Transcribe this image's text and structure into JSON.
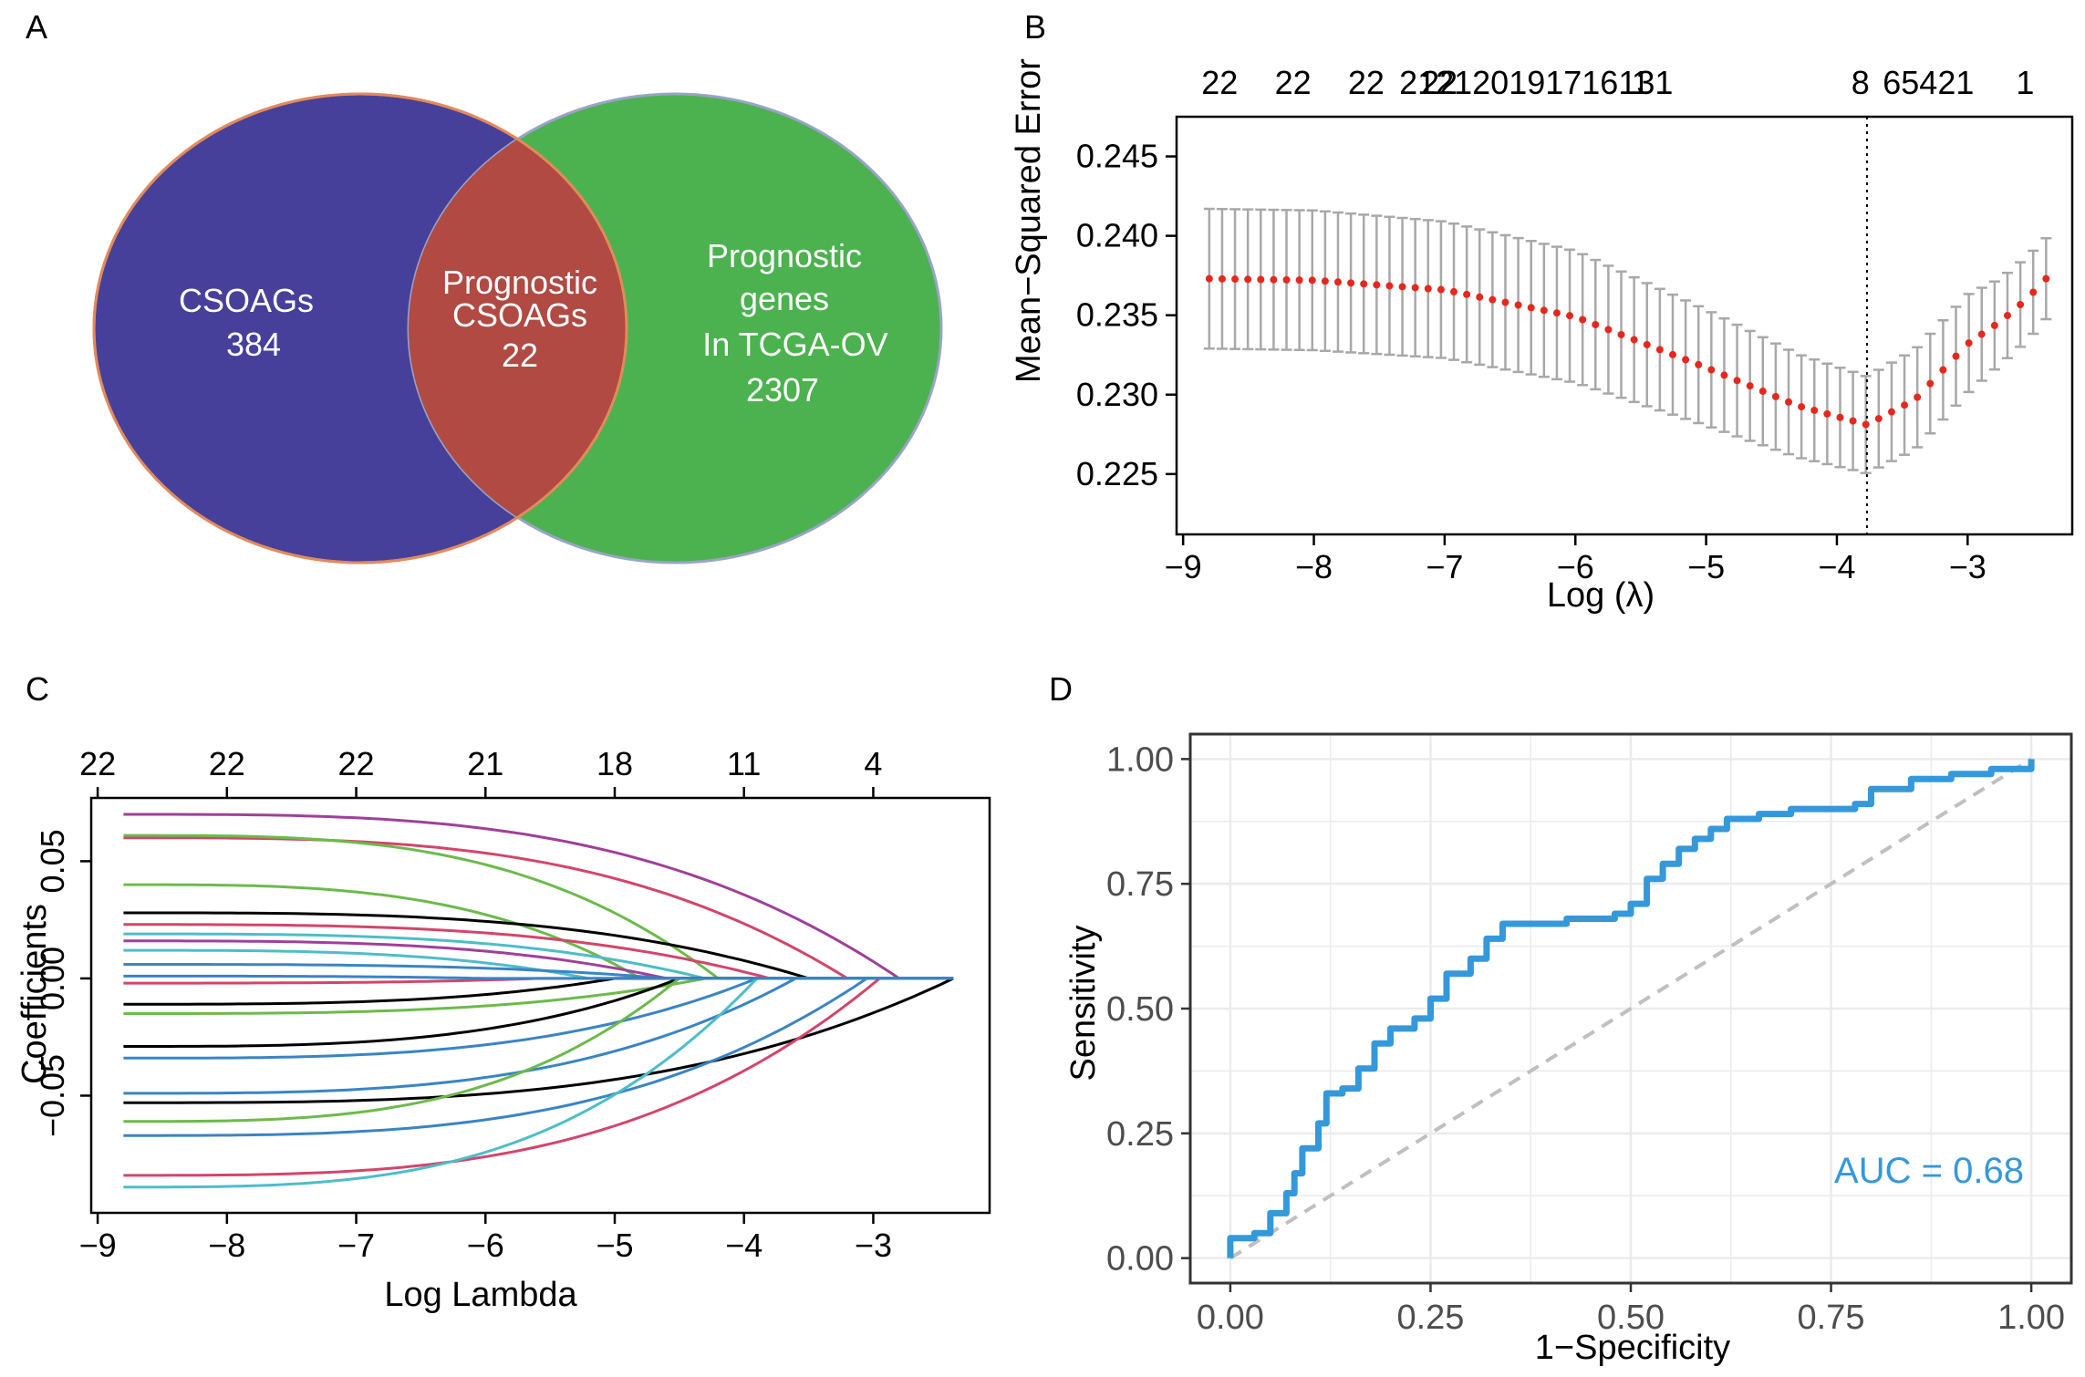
{
  "panels": {
    "a": "A",
    "b": "B",
    "c": "C",
    "d": "D"
  },
  "venn": {
    "left": {
      "line1": "CSOAGs",
      "line2": "384",
      "color": "#46409a"
    },
    "overlap": {
      "line1": "Prognostic",
      "line2": "CSOAGs",
      "line3": "22",
      "color": "#b04a43"
    },
    "right": {
      "line1": "Prognostic",
      "line2": "genes",
      "line3": "In TCGA-OV",
      "line4": "2307",
      "color": "#4bb24f"
    }
  },
  "chart_data": [
    {
      "id": "B",
      "type": "scatter",
      "title": "",
      "xlabel": "Log (λ)",
      "ylabel": "Mean−Squared Error",
      "xlim": [
        -9.05,
        -2.2
      ],
      "ylim": [
        0.2212,
        0.2475
      ],
      "xticks": [
        -9,
        -8,
        -7,
        -6,
        -5,
        -4,
        -3
      ],
      "xtick_labels": [
        "−9",
        "−8",
        "−7",
        "−6",
        "−5",
        "−4",
        "−3"
      ],
      "yticks": [
        0.225,
        0.23,
        0.235,
        0.24,
        0.245
      ],
      "ytick_labels": [
        "0.225",
        "0.230",
        "0.235",
        "0.240",
        "0.245"
      ],
      "top_labels": [
        {
          "x": -8.72,
          "text": "22"
        },
        {
          "x": -8.16,
          "text": "22"
        },
        {
          "x": -7.6,
          "text": "22"
        },
        {
          "x": -7.04,
          "text": "22"
        },
        {
          "x": -6.3,
          "text": "212120191716131"
        },
        {
          "x": -5.5,
          "text": "1"
        },
        {
          "x": -3.82,
          "text": "8"
        },
        {
          "x": -3.3,
          "text": "65421"
        },
        {
          "x": -2.56,
          "text": "1"
        }
      ],
      "lambda_min": -3.77,
      "mse_knots": [
        [
          -8.8,
          0.2373
        ],
        [
          -8.0,
          0.2372
        ],
        [
          -7.0,
          0.2366
        ],
        [
          -6.0,
          0.2349
        ],
        [
          -5.0,
          0.2317
        ],
        [
          -4.3,
          0.2293
        ],
        [
          -3.77,
          0.2281
        ],
        [
          -3.4,
          0.2297
        ],
        [
          -3.0,
          0.2332
        ],
        [
          -2.75,
          0.2346
        ],
        [
          -2.55,
          0.236
        ],
        [
          -2.4,
          0.2373
        ]
      ],
      "se_knots": [
        [
          -8.8,
          0.0088
        ],
        [
          -8.0,
          0.0088
        ],
        [
          -7.0,
          0.0086
        ],
        [
          -6.0,
          0.0083
        ],
        [
          -5.0,
          0.0073
        ],
        [
          -4.3,
          0.0065
        ],
        [
          -3.77,
          0.0061
        ],
        [
          -3.4,
          0.0063
        ],
        [
          -3.0,
          0.0062
        ],
        [
          -2.75,
          0.0054
        ],
        [
          -2.55,
          0.0053
        ],
        [
          -2.4,
          0.0051
        ]
      ],
      "colors": {
        "points": "#e5281d",
        "error_bars": "#a8a8a8",
        "vline": "#000000"
      }
    },
    {
      "id": "C",
      "type": "line",
      "title": "",
      "xlabel": "Log Lambda",
      "ylabel": "Coefficients",
      "xlim": [
        -9.05,
        -2.1
      ],
      "ylim": [
        -0.1,
        0.077
      ],
      "xticks": [
        -9,
        -8,
        -7,
        -6,
        -5,
        -4,
        -3
      ],
      "xtick_labels": [
        "−9",
        "−8",
        "−7",
        "−6",
        "−5",
        "−4",
        "−3"
      ],
      "yticks": [
        -0.05,
        0.0,
        0.05
      ],
      "ytick_labels": [
        "−0.05",
        "0.00",
        "0.05"
      ],
      "top_labels": [
        {
          "x": -9,
          "text": "22"
        },
        {
          "x": -8,
          "text": "22"
        },
        {
          "x": -7,
          "text": "22"
        },
        {
          "x": -6,
          "text": "21"
        },
        {
          "x": -5,
          "text": "18"
        },
        {
          "x": -4,
          "text": "11"
        },
        {
          "x": -3,
          "text": "4"
        }
      ],
      "x_end": -2.38,
      "series": [
        {
          "start": 0.07,
          "zero_at": -2.8,
          "color": "#a03f9a"
        },
        {
          "start": 0.06,
          "zero_at": -3.2,
          "color": "#d3456b"
        },
        {
          "start": 0.061,
          "zero_at": -4.2,
          "color": "#6cba4b"
        },
        {
          "start": 0.04,
          "zero_at": -4.8,
          "color": "#6cba4b"
        },
        {
          "start": 0.028,
          "zero_at": -3.5,
          "color": "#000000"
        },
        {
          "start": 0.023,
          "zero_at": -3.8,
          "color": "#d3456b"
        },
        {
          "start": 0.019,
          "zero_at": -4.3,
          "color": "#4dbdc9"
        },
        {
          "start": 0.016,
          "zero_at": -4.6,
          "color": "#a03f9a"
        },
        {
          "start": 0.012,
          "zero_at": -5.2,
          "color": "#4dbdc9"
        },
        {
          "start": 0.006,
          "zero_at": -4.6,
          "color": "#3a84c4"
        },
        {
          "start": -0.002,
          "zero_at": -5.6,
          "color": "#d3456b"
        },
        {
          "start": -0.011,
          "zero_at": -5.0,
          "color": "#000000"
        },
        {
          "start": -0.015,
          "zero_at": -4.3,
          "color": "#6cba4b"
        },
        {
          "start": -0.029,
          "zero_at": -4.5,
          "color": "#000000"
        },
        {
          "start": -0.034,
          "zero_at": -3.9,
          "color": "#3a84c4"
        },
        {
          "start": -0.049,
          "zero_at": -3.6,
          "color": "#3a84c4"
        },
        {
          "start": -0.053,
          "zero_at": -2.38,
          "color": "#000000"
        },
        {
          "start": -0.061,
          "zero_at": -4.5,
          "color": "#6cba4b"
        },
        {
          "start": -0.067,
          "zero_at": -3.05,
          "color": "#3a84c4"
        },
        {
          "start": -0.084,
          "zero_at": -2.95,
          "color": "#d3456b"
        },
        {
          "start": -0.089,
          "zero_at": -3.9,
          "color": "#4dbdc9"
        },
        {
          "start": 0.001,
          "zero_at": -6.0,
          "color": "#3a84c4"
        }
      ]
    },
    {
      "id": "D",
      "type": "line",
      "title": "",
      "xlabel": "1−Specificity",
      "ylabel": "Sensitivity",
      "xlim": [
        -0.05,
        1.05
      ],
      "ylim": [
        -0.05,
        1.05
      ],
      "xticks": [
        0,
        0.25,
        0.5,
        0.75,
        1
      ],
      "xtick_labels": [
        "0.00",
        "0.25",
        "0.50",
        "0.75",
        "1.00"
      ],
      "yticks": [
        0,
        0.25,
        0.5,
        0.75,
        1
      ],
      "ytick_labels": [
        "0.00",
        "0.25",
        "0.50",
        "0.75",
        "1.00"
      ],
      "annotation": "AUC  =  0.68",
      "roc_points": [
        [
          0,
          0
        ],
        [
          0,
          0.04
        ],
        [
          0.03,
          0.05
        ],
        [
          0.05,
          0.09
        ],
        [
          0.07,
          0.13
        ],
        [
          0.08,
          0.17
        ],
        [
          0.09,
          0.22
        ],
        [
          0.11,
          0.27
        ],
        [
          0.12,
          0.33
        ],
        [
          0.14,
          0.34
        ],
        [
          0.16,
          0.38
        ],
        [
          0.18,
          0.43
        ],
        [
          0.2,
          0.46
        ],
        [
          0.23,
          0.48
        ],
        [
          0.25,
          0.52
        ],
        [
          0.27,
          0.57
        ],
        [
          0.3,
          0.6
        ],
        [
          0.32,
          0.64
        ],
        [
          0.34,
          0.67
        ],
        [
          0.38,
          0.67
        ],
        [
          0.42,
          0.68
        ],
        [
          0.45,
          0.68
        ],
        [
          0.48,
          0.69
        ],
        [
          0.5,
          0.71
        ],
        [
          0.52,
          0.76
        ],
        [
          0.54,
          0.79
        ],
        [
          0.56,
          0.82
        ],
        [
          0.58,
          0.84
        ],
        [
          0.6,
          0.86
        ],
        [
          0.62,
          0.88
        ],
        [
          0.66,
          0.89
        ],
        [
          0.7,
          0.9
        ],
        [
          0.74,
          0.9
        ],
        [
          0.78,
          0.91
        ],
        [
          0.8,
          0.94
        ],
        [
          0.85,
          0.96
        ],
        [
          0.9,
          0.97
        ],
        [
          0.95,
          0.98
        ],
        [
          1,
          1
        ]
      ],
      "diagonal": [
        [
          0,
          0
        ],
        [
          1,
          1
        ]
      ],
      "colors": {
        "roc": "#3498db",
        "diagonal": "#bfbfbf",
        "grid": "#ebebeb",
        "annotation": "#3498db"
      }
    }
  ]
}
